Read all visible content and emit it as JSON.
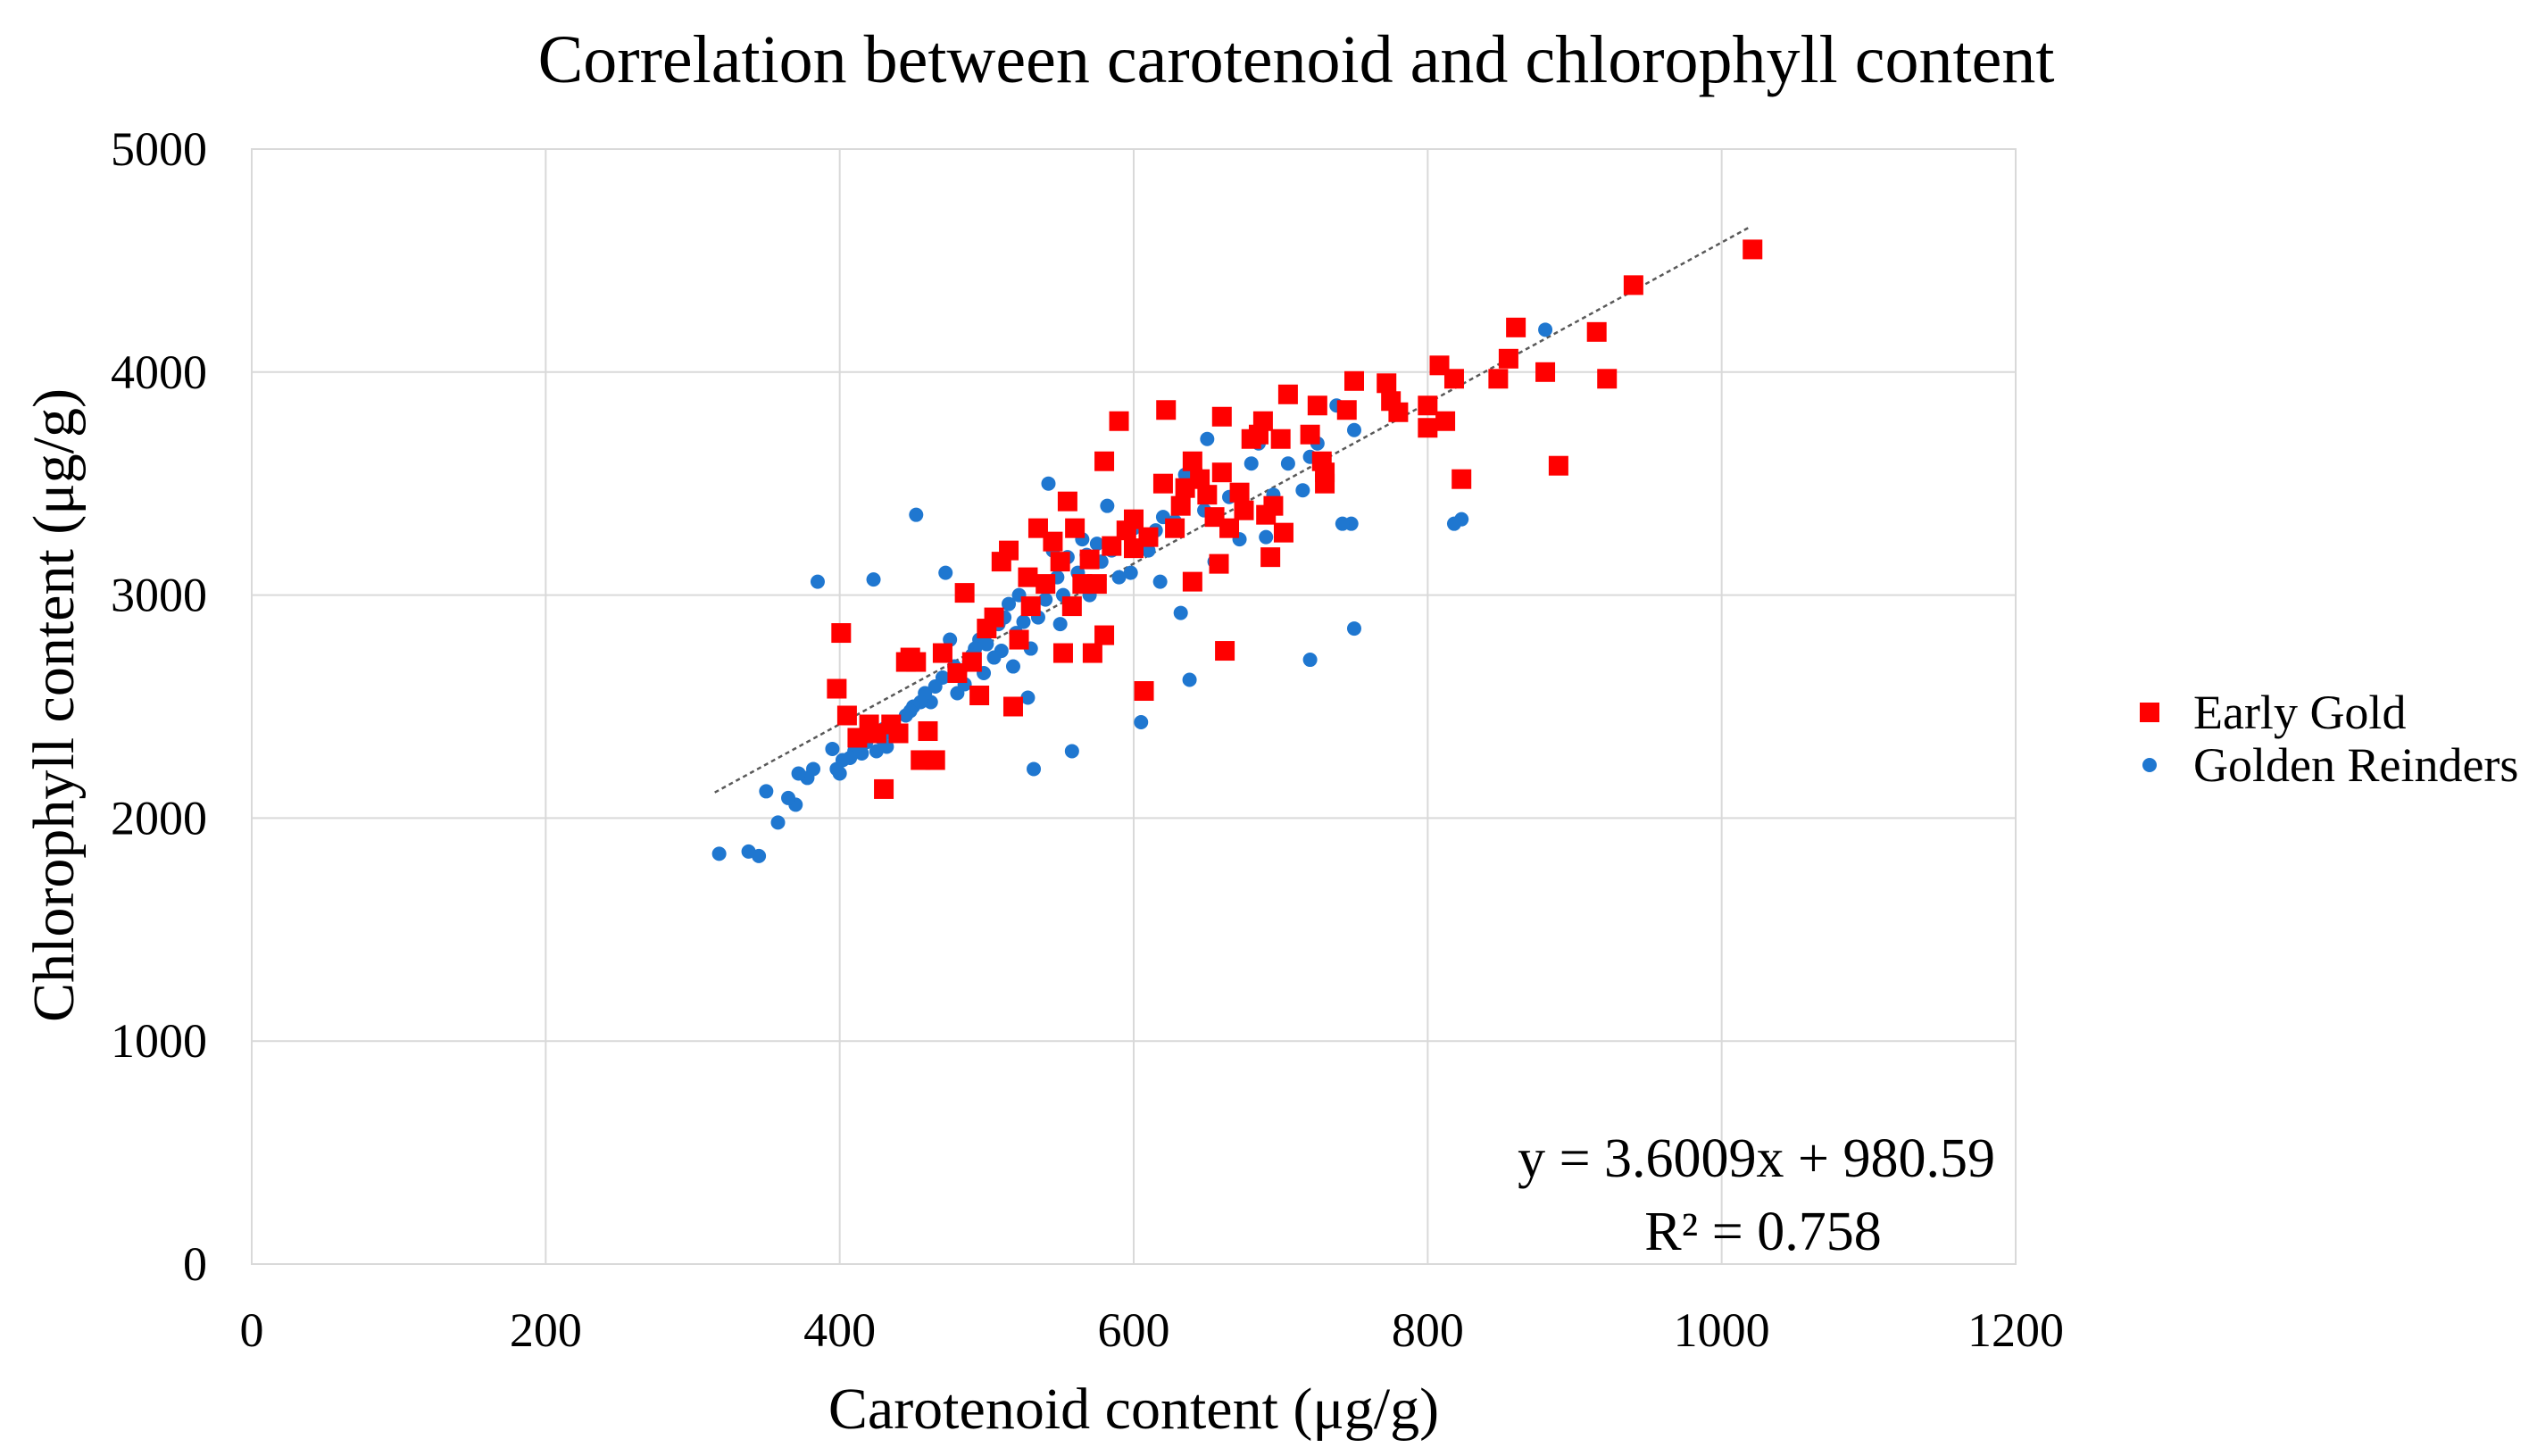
{
  "chart_data": {
    "type": "scatter",
    "title": "Correlation between carotenoid and chlorophyll content",
    "xlabel": "Carotenoid content (μg/g)",
    "ylabel": "Chlorophyll content (μg/g)",
    "xlim": [
      0,
      1200
    ],
    "ylim": [
      0,
      5000
    ],
    "xticks": [
      "0",
      "200",
      "400",
      "600",
      "800",
      "1000",
      "1200"
    ],
    "yticks": [
      "0",
      "1000",
      "2000",
      "3000",
      "4000",
      "5000"
    ],
    "grid": true,
    "legend_position": "right",
    "trendline": {
      "slope": 3.6009,
      "intercept": 980.59,
      "x_range": [
        315,
        1020
      ],
      "equation": "y = 3.6009x + 980.59",
      "r_squared": "R² = 0.758"
    },
    "colors": {
      "early_gold": "#ff0000",
      "golden_reinders": "#1f77d0",
      "grid": "#d9d9d9",
      "trend": "#595959"
    },
    "series": [
      {
        "name": "Early Gold",
        "marker": "square",
        "points": [
          [
            1021,
            4550
          ],
          [
            940,
            4390
          ],
          [
            915,
            4180
          ],
          [
            922,
            3970
          ],
          [
            889,
            3580
          ],
          [
            880,
            4000
          ],
          [
            860,
            4200
          ],
          [
            855,
            4060
          ],
          [
            848,
            3970
          ],
          [
            823,
            3520
          ],
          [
            818,
            3970
          ],
          [
            812,
            3780
          ],
          [
            808,
            4030
          ],
          [
            800,
            3850
          ],
          [
            800,
            3750
          ],
          [
            780,
            3820
          ],
          [
            775,
            3870
          ],
          [
            772,
            3950
          ],
          [
            750,
            3960
          ],
          [
            745,
            3830
          ],
          [
            730,
            3500
          ],
          [
            730,
            3550
          ],
          [
            728,
            3600
          ],
          [
            725,
            3850
          ],
          [
            720,
            3720
          ],
          [
            705,
            3900
          ],
          [
            702,
            3280
          ],
          [
            700,
            3700
          ],
          [
            695,
            3400
          ],
          [
            693,
            3170
          ],
          [
            690,
            3360
          ],
          [
            688,
            3780
          ],
          [
            685,
            3720
          ],
          [
            680,
            3700
          ],
          [
            675,
            3380
          ],
          [
            672,
            3460
          ],
          [
            665,
            3300
          ],
          [
            662,
            2750
          ],
          [
            660,
            3800
          ],
          [
            660,
            3550
          ],
          [
            658,
            3140
          ],
          [
            655,
            3350
          ],
          [
            650,
            3450
          ],
          [
            645,
            3520
          ],
          [
            640,
            3600
          ],
          [
            640,
            3060
          ],
          [
            635,
            3480
          ],
          [
            632,
            3400
          ],
          [
            628,
            3300
          ],
          [
            622,
            3830
          ],
          [
            620,
            3500
          ],
          [
            610,
            3260
          ],
          [
            607,
            2570
          ],
          [
            600,
            3340
          ],
          [
            600,
            3210
          ],
          [
            595,
            3290
          ],
          [
            590,
            3780
          ],
          [
            585,
            3220
          ],
          [
            580,
            3600
          ],
          [
            580,
            2820
          ],
          [
            575,
            3050
          ],
          [
            572,
            2740
          ],
          [
            570,
            3160
          ],
          [
            565,
            3050
          ],
          [
            560,
            3300
          ],
          [
            558,
            2950
          ],
          [
            555,
            3420
          ],
          [
            552,
            2740
          ],
          [
            550,
            3150
          ],
          [
            545,
            3240
          ],
          [
            540,
            3050
          ],
          [
            535,
            3300
          ],
          [
            530,
            2950
          ],
          [
            528,
            3080
          ],
          [
            522,
            2800
          ],
          [
            518,
            2500
          ],
          [
            515,
            3200
          ],
          [
            510,
            3150
          ],
          [
            505,
            2900
          ],
          [
            500,
            2850
          ],
          [
            495,
            2550
          ],
          [
            490,
            2700
          ],
          [
            485,
            3010
          ],
          [
            480,
            2650
          ],
          [
            470,
            2740
          ],
          [
            465,
            2260
          ],
          [
            460,
            2390
          ],
          [
            455,
            2260
          ],
          [
            452,
            2700
          ],
          [
            448,
            2720
          ],
          [
            445,
            2700
          ],
          [
            440,
            2380
          ],
          [
            435,
            2420
          ],
          [
            430,
            2130
          ],
          [
            425,
            2380
          ],
          [
            420,
            2420
          ],
          [
            412,
            2360
          ],
          [
            405,
            2460
          ],
          [
            401,
            2830
          ],
          [
            398,
            2580
          ]
        ]
      },
      {
        "name": "Golden Reinders",
        "marker": "circle",
        "points": [
          [
            880,
            4190
          ],
          [
            823,
            3340
          ],
          [
            818,
            3320
          ],
          [
            750,
            3740
          ],
          [
            750,
            2850
          ],
          [
            748,
            3320
          ],
          [
            742,
            3320
          ],
          [
            738,
            3850
          ],
          [
            725,
            3680
          ],
          [
            720,
            3620
          ],
          [
            720,
            2710
          ],
          [
            715,
            3470
          ],
          [
            705,
            3590
          ],
          [
            695,
            3450
          ],
          [
            690,
            3260
          ],
          [
            685,
            3680
          ],
          [
            680,
            3590
          ],
          [
            672,
            3250
          ],
          [
            665,
            3440
          ],
          [
            655,
            3150
          ],
          [
            650,
            3700
          ],
          [
            648,
            3380
          ],
          [
            642,
            3560
          ],
          [
            638,
            2620
          ],
          [
            635,
            3540
          ],
          [
            632,
            2920
          ],
          [
            628,
            3330
          ],
          [
            620,
            3350
          ],
          [
            618,
            3060
          ],
          [
            615,
            3290
          ],
          [
            610,
            3200
          ],
          [
            605,
            2430
          ],
          [
            600,
            3300
          ],
          [
            598,
            3100
          ],
          [
            595,
            3280
          ],
          [
            590,
            3080
          ],
          [
            585,
            3200
          ],
          [
            582,
            3400
          ],
          [
            578,
            3150
          ],
          [
            575,
            3230
          ],
          [
            570,
            3000
          ],
          [
            568,
            3180
          ],
          [
            565,
            3250
          ],
          [
            562,
            3100
          ],
          [
            558,
            2300
          ],
          [
            555,
            3170
          ],
          [
            552,
            3000
          ],
          [
            550,
            2870
          ],
          [
            548,
            3080
          ],
          [
            545,
            3200
          ],
          [
            542,
            3500
          ],
          [
            540,
            2980
          ],
          [
            538,
            3060
          ],
          [
            535,
            2900
          ],
          [
            532,
            2220
          ],
          [
            530,
            2760
          ],
          [
            528,
            2540
          ],
          [
            525,
            2880
          ],
          [
            522,
            3000
          ],
          [
            520,
            2830
          ],
          [
            518,
            2680
          ],
          [
            515,
            2960
          ],
          [
            512,
            2900
          ],
          [
            510,
            2750
          ],
          [
            508,
            2870
          ],
          [
            505,
            2720
          ],
          [
            502,
            2850
          ],
          [
            500,
            2780
          ],
          [
            498,
            2650
          ],
          [
            495,
            2800
          ],
          [
            492,
            2760
          ],
          [
            490,
            2730
          ],
          [
            488,
            2700
          ],
          [
            485,
            2600
          ],
          [
            482,
            2660
          ],
          [
            480,
            2560
          ],
          [
            478,
            2680
          ],
          [
            475,
            2800
          ],
          [
            472,
            3100
          ],
          [
            470,
            2630
          ],
          [
            465,
            2590
          ],
          [
            462,
            2520
          ],
          [
            458,
            2560
          ],
          [
            455,
            2520
          ],
          [
            452,
            3360
          ],
          [
            450,
            2500
          ],
          [
            448,
            2480
          ],
          [
            445,
            2460
          ],
          [
            440,
            2380
          ],
          [
            435,
            2380
          ],
          [
            432,
            2320
          ],
          [
            430,
            2400
          ],
          [
            428,
            2360
          ],
          [
            425,
            2300
          ],
          [
            423,
            3070
          ],
          [
            420,
            2380
          ],
          [
            418,
            2340
          ],
          [
            415,
            2290
          ],
          [
            410,
            2300
          ],
          [
            407,
            2270
          ],
          [
            402,
            2260
          ],
          [
            400,
            2200
          ],
          [
            398,
            2220
          ],
          [
            395,
            2310
          ],
          [
            385,
            3060
          ],
          [
            382,
            2220
          ],
          [
            378,
            2180
          ],
          [
            372,
            2200
          ],
          [
            370,
            2060
          ],
          [
            365,
            2090
          ],
          [
            358,
            1980
          ],
          [
            350,
            2120
          ],
          [
            345,
            1830
          ],
          [
            338,
            1850
          ],
          [
            318,
            1840
          ]
        ]
      }
    ]
  }
}
